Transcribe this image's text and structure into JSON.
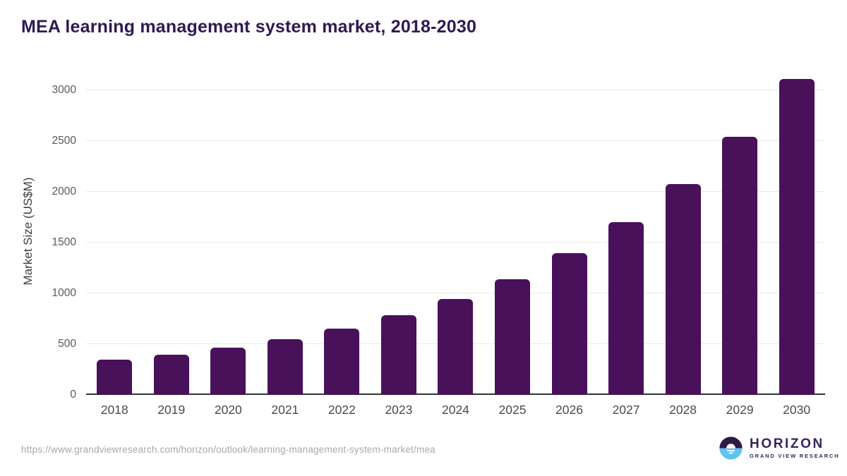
{
  "header": {
    "title": "MEA learning management system market, 2018-2030",
    "title_color": "#2e1a52"
  },
  "chart_data": {
    "type": "bar",
    "title": "MEA learning management system market, 2018-2030",
    "categories": [
      "2018",
      "2019",
      "2020",
      "2021",
      "2022",
      "2023",
      "2024",
      "2025",
      "2026",
      "2027",
      "2028",
      "2029",
      "2030"
    ],
    "values": [
      345,
      395,
      465,
      550,
      655,
      785,
      945,
      1140,
      1395,
      1700,
      2075,
      2540,
      3110
    ],
    "xlabel": "",
    "ylabel": "Market Size (US$M)",
    "yticks": [
      0,
      500,
      1000,
      1500,
      2000,
      2500,
      3000
    ],
    "ylim": [
      0,
      3200
    ],
    "grid": true,
    "legend": "none",
    "bar_color": "#481159",
    "gridline_color": "#e9e9e9",
    "axis_line_color": "#333333",
    "tick_label_color": "#595959"
  },
  "footer": {
    "source_url": "https://www.grandviewresearch.com/horizon/outlook/learning-management-system-market/mea",
    "logo": {
      "name": "HORIZON",
      "subtitle": "GRAND VIEW RESEARCH",
      "icon": "horizon-sunrise-icon",
      "icon_purple": "#2e1a47",
      "icon_blue": "#5ec4ee",
      "text_color": "#37255d"
    }
  }
}
